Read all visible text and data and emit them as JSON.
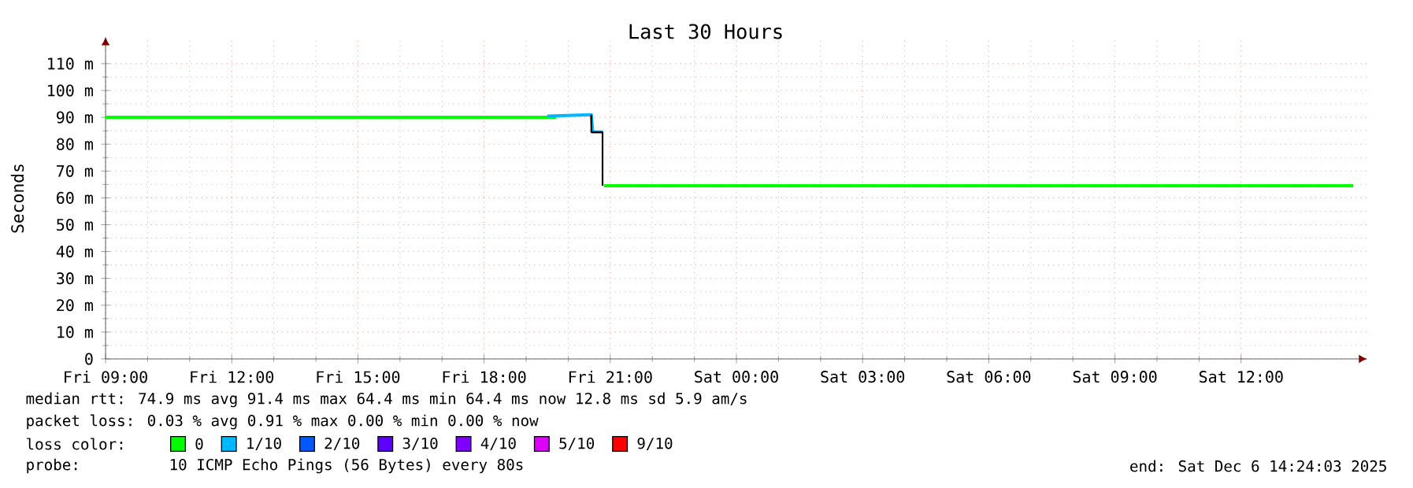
{
  "chart_data": {
    "type": "line",
    "title": "Last 30 Hours",
    "ylabel": "Seconds",
    "xlim": [
      "2025-12-05T09:00",
      "2025-12-06T15:00"
    ],
    "xticks": [
      {
        "value": "2025-12-05T09:00",
        "label": "Fri 09:00"
      },
      {
        "value": "2025-12-05T12:00",
        "label": "Fri 12:00"
      },
      {
        "value": "2025-12-05T15:00",
        "label": "Fri 15:00"
      },
      {
        "value": "2025-12-05T18:00",
        "label": "Fri 18:00"
      },
      {
        "value": "2025-12-05T21:00",
        "label": "Fri 21:00"
      },
      {
        "value": "2025-12-06T00:00",
        "label": "Sat 00:00"
      },
      {
        "value": "2025-12-06T03:00",
        "label": "Sat 03:00"
      },
      {
        "value": "2025-12-06T06:00",
        "label": "Sat 06:00"
      },
      {
        "value": "2025-12-06T09:00",
        "label": "Sat 09:00"
      },
      {
        "value": "2025-12-06T12:00",
        "label": "Sat 12:00"
      }
    ],
    "ylim": [
      0,
      120
    ],
    "yticks": [
      0,
      {
        "value": 10,
        "label": "10 m"
      },
      {
        "value": 20,
        "label": "20 m"
      },
      {
        "value": 30,
        "label": "30 m"
      },
      {
        "value": 40,
        "label": "40 m"
      },
      {
        "value": 50,
        "label": "50 m"
      },
      {
        "value": 60,
        "label": "60 m"
      },
      {
        "value": 70,
        "label": "70 m"
      },
      {
        "value": 80,
        "label": "80 m"
      },
      {
        "value": 90,
        "label": "90 m"
      },
      {
        "value": 100,
        "label": "100 m"
      },
      {
        "value": 110,
        "label": "110 m"
      }
    ],
    "grid": true,
    "legend": "bottom",
    "legend_title": "loss color:",
    "series": [
      {
        "name": "0",
        "color": "#00ff00",
        "x": [
          "2025-12-05T09:00",
          "2025-12-05T19:43",
          "2025-12-05T20:00",
          "2025-12-05T20:51",
          "2025-12-06T14:40"
        ],
        "values": [
          90,
          90,
          null,
          64.5,
          64.5
        ]
      },
      {
        "name": "1/10",
        "color": "#00b8ff",
        "x": [
          "2025-12-05T19:30",
          "2025-12-05T20:33",
          "2025-12-05T20:35",
          "2025-12-05T20:49"
        ],
        "values": [
          90.5,
          91,
          84.5,
          84.5
        ]
      },
      {
        "name": "2/10",
        "color": "#0059ff"
      },
      {
        "name": "3/10",
        "color": "#5e00ff"
      },
      {
        "name": "4/10",
        "color": "#7e00ff"
      },
      {
        "name": "5/10",
        "color": "#dd00ff"
      },
      {
        "name": "9/10",
        "color": "#ff0000"
      },
      {
        "color": "#000000",
        "x": [
          "2025-12-05T20:33",
          "2025-12-05T20:33",
          "2025-12-05T20:49",
          "2025-12-05T20:49"
        ],
        "values": [
          91,
          84.5,
          84.5,
          64.5
        ]
      }
    ],
    "annotations": [
      "median rtt: 74.9 ms avg 91.4 ms max 64.4 ms min 64.4 ms now 12.8 ms sd 5.9 am/s",
      "packet loss: 0.03 % avg 0.91 % max 0.00 % min 0.00 % now",
      "probe:",
      "10 ICMP Echo Pings (56 Bytes) every 80s",
      "end: Sat Dec 6 14:24:03 2025"
    ]
  }
}
